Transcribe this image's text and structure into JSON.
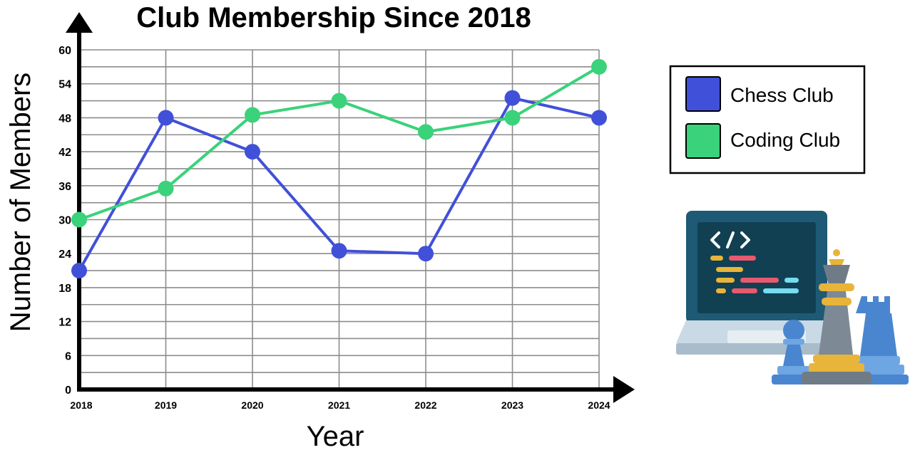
{
  "chart_data": {
    "type": "line",
    "title": "Club Membership Since 2018",
    "xlabel": "Year",
    "ylabel": "Number of Members",
    "categories": [
      "2018",
      "2019",
      "2020",
      "2021",
      "2022",
      "2023",
      "2024"
    ],
    "yticks": [
      0,
      6,
      12,
      18,
      24,
      30,
      36,
      42,
      48,
      54,
      60
    ],
    "ylim": [
      0,
      60
    ],
    "grid": true,
    "legend_position": "right",
    "series": [
      {
        "name": "Chess Club",
        "color": "#4150d8",
        "values": [
          21,
          48,
          42,
          24.5,
          24,
          51.5,
          48
        ]
      },
      {
        "name": "Coding Club",
        "color": "#3ad27a",
        "values": [
          30,
          35.5,
          48.5,
          51,
          45.5,
          48,
          57
        ]
      }
    ]
  },
  "illustration": {
    "icons": [
      "laptop-code-icon",
      "chess-pieces-icon"
    ]
  }
}
